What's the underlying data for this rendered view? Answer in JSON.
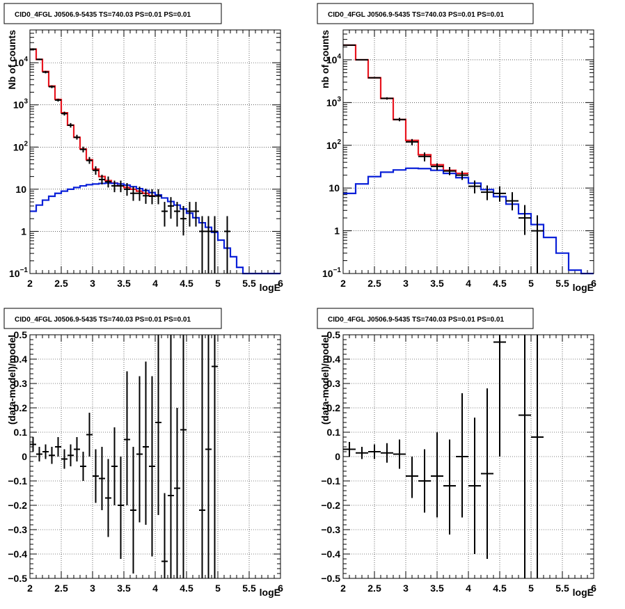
{
  "chart_data": [
    {
      "type": "step",
      "panel": "top-left",
      "title": "CID0_4FGL J0506.9-5435 TS=740.03 PS=0.01 PS=0.01",
      "xlabel": "logE",
      "ylabel": "Nb of counts",
      "xlim": [
        2,
        6
      ],
      "ylim": [
        0.1,
        60000
      ],
      "yscale": "log",
      "grid": true,
      "xticks": [
        "2",
        "2.5",
        "3",
        "3.5",
        "4",
        "4.5",
        "5",
        "5.5",
        "6"
      ],
      "yticks": [
        {
          "v": 0.1,
          "base": "10",
          "exp": "−1"
        },
        {
          "v": 1,
          "base": "1",
          "exp": ""
        },
        {
          "v": 10,
          "base": "10",
          "exp": ""
        },
        {
          "v": 100,
          "base": "10",
          "exp": "2"
        },
        {
          "v": 1000,
          "base": "10",
          "exp": "3"
        },
        {
          "v": 10000,
          "base": "10",
          "exp": "4"
        }
      ],
      "bin_edges": [
        2,
        2.1,
        2.2,
        2.3,
        2.4,
        2.5,
        2.6,
        2.7,
        2.8,
        2.9,
        3,
        3.1,
        3.2,
        3.3,
        3.4,
        3.5,
        3.6,
        3.7,
        3.8,
        3.9,
        4,
        4.1,
        4.2,
        4.3,
        4.4,
        4.5,
        4.6,
        4.7,
        4.8,
        4.9,
        5,
        5.1,
        5.2,
        5.3,
        5.4,
        5.5,
        5.6,
        5.7,
        5.8,
        5.9,
        6
      ],
      "series": [
        {
          "color": "#e8141e",
          "values": [
            21000,
            12000,
            6200,
            2800,
            1350,
            650,
            330,
            170,
            90,
            50,
            30,
            20,
            16,
            14,
            12,
            11,
            10,
            9,
            8,
            7
          ]
        },
        {
          "color": "#0a20d8",
          "values": [
            3.0,
            4.2,
            5.5,
            6.8,
            8.0,
            9.0,
            10.0,
            11.0,
            12.0,
            12.8,
            13.3,
            13.7,
            13.9,
            13.8,
            13.3,
            12.5,
            11.5,
            10.3,
            9.3,
            8.3,
            7.3,
            6.2,
            5.1,
            4.2,
            3.4,
            2.7,
            2.1,
            1.6,
            1.25,
            0.95,
            0.62,
            0.4,
            0.25,
            0.14,
            0.09,
            0.09,
            0.09,
            0.09,
            0.09,
            0.09
          ]
        }
      ],
      "points": [
        {
          "x": 2.05,
          "y": 21000,
          "lo": 20000,
          "hi": 22000
        },
        {
          "x": 2.15,
          "y": 12000,
          "lo": 11500,
          "hi": 12500
        },
        {
          "x": 2.25,
          "y": 6000,
          "lo": 5600,
          "hi": 6400
        },
        {
          "x": 2.35,
          "y": 2700,
          "lo": 2500,
          "hi": 2900
        },
        {
          "x": 2.45,
          "y": 1300,
          "lo": 1200,
          "hi": 1400
        },
        {
          "x": 2.55,
          "y": 620,
          "lo": 560,
          "hi": 690
        },
        {
          "x": 2.65,
          "y": 330,
          "lo": 290,
          "hi": 370
        },
        {
          "x": 2.75,
          "y": 170,
          "lo": 150,
          "hi": 195
        },
        {
          "x": 2.85,
          "y": 88,
          "lo": 75,
          "hi": 102
        },
        {
          "x": 2.95,
          "y": 48,
          "lo": 40,
          "hi": 58
        },
        {
          "x": 3.05,
          "y": 28,
          "lo": 22,
          "hi": 35
        },
        {
          "x": 3.15,
          "y": 17,
          "lo": 13,
          "hi": 22
        },
        {
          "x": 3.25,
          "y": 15,
          "lo": 11,
          "hi": 20
        },
        {
          "x": 3.35,
          "y": 12,
          "lo": 8.5,
          "hi": 16
        },
        {
          "x": 3.45,
          "y": 12,
          "lo": 8.5,
          "hi": 16
        },
        {
          "x": 3.55,
          "y": 10,
          "lo": 7,
          "hi": 14
        },
        {
          "x": 3.65,
          "y": 8,
          "lo": 5.3,
          "hi": 11.5
        },
        {
          "x": 3.75,
          "y": 8,
          "lo": 5.3,
          "hi": 11.5
        },
        {
          "x": 3.85,
          "y": 7,
          "lo": 4.5,
          "hi": 10.3
        },
        {
          "x": 3.95,
          "y": 6.8,
          "lo": 4.4,
          "hi": 10
        },
        {
          "x": 4.05,
          "y": 6.9,
          "lo": 4.4,
          "hi": 10
        },
        {
          "x": 4.15,
          "y": 3,
          "lo": 1.3,
          "hi": 5
        },
        {
          "x": 4.25,
          "y": 4,
          "lo": 2,
          "hi": 6.5
        },
        {
          "x": 4.35,
          "y": 3,
          "lo": 1.3,
          "hi": 5
        },
        {
          "x": 4.45,
          "y": 2,
          "lo": 0.8,
          "hi": 4
        },
        {
          "x": 4.55,
          "y": 3,
          "lo": 1.3,
          "hi": 5
        },
        {
          "x": 4.65,
          "y": 3,
          "lo": 1.3,
          "hi": 5
        },
        {
          "x": 4.75,
          "y": 1,
          "lo": 0.1,
          "hi": 2.3
        },
        {
          "x": 4.85,
          "y": 1,
          "lo": 0.1,
          "hi": 2.3
        },
        {
          "x": 4.95,
          "y": 1,
          "lo": 0.1,
          "hi": 2.3
        },
        {
          "x": 5.15,
          "y": 1,
          "lo": 0.1,
          "hi": 2.3
        }
      ]
    },
    {
      "type": "step",
      "panel": "top-right",
      "title": "CID0_4FGL J0506.9-5435 TS=740.03 PS=0.01 PS=0.01",
      "xlabel": "logE",
      "ylabel": "nb of counts",
      "xlim": [
        2,
        6
      ],
      "ylim": [
        0.1,
        50000
      ],
      "yscale": "log",
      "grid": true,
      "xticks": [
        "2",
        "2.5",
        "3",
        "3.5",
        "4",
        "4.5",
        "5",
        "5.5",
        "6"
      ],
      "yticks": [
        {
          "v": 0.1,
          "base": "10",
          "exp": "−1"
        },
        {
          "v": 1,
          "base": "1",
          "exp": ""
        },
        {
          "v": 10,
          "base": "10",
          "exp": ""
        },
        {
          "v": 100,
          "base": "10",
          "exp": "2"
        },
        {
          "v": 1000,
          "base": "10",
          "exp": "3"
        },
        {
          "v": 10000,
          "base": "10",
          "exp": "4"
        }
      ],
      "bin_edges": [
        2,
        2.2,
        2.4,
        2.6,
        2.8,
        3,
        3.2,
        3.4,
        3.6,
        3.8,
        4,
        4.2,
        4.4,
        4.6,
        4.8,
        5,
        5.2,
        5.4,
        5.6,
        5.8,
        6
      ],
      "series": [
        {
          "color": "#e8141e",
          "values": [
            22000,
            10000,
            3800,
            1250,
            400,
            130,
            60,
            35,
            26,
            22
          ]
        },
        {
          "color": "#0a20d8",
          "values": [
            7.5,
            12.5,
            18.5,
            23.5,
            26.5,
            29,
            28.5,
            26,
            22,
            17.5,
            13,
            9.2,
            6.3,
            4.2,
            2.5,
            1.4,
            0.7,
            0.3,
            0.12,
            0.1
          ]
        }
      ],
      "points": [
        {
          "x": 2.1,
          "y": 22000,
          "lo": 21500,
          "hi": 22500
        },
        {
          "x": 2.3,
          "y": 10000,
          "lo": 9800,
          "hi": 10200
        },
        {
          "x": 2.5,
          "y": 3800,
          "lo": 3650,
          "hi": 3950
        },
        {
          "x": 2.7,
          "y": 1250,
          "lo": 1170,
          "hi": 1330
        },
        {
          "x": 2.9,
          "y": 400,
          "lo": 365,
          "hi": 440
        },
        {
          "x": 3.1,
          "y": 120,
          "lo": 100,
          "hi": 140
        },
        {
          "x": 3.3,
          "y": 55,
          "lo": 42,
          "hi": 68
        },
        {
          "x": 3.5,
          "y": 32,
          "lo": 26,
          "hi": 38
        },
        {
          "x": 3.7,
          "y": 25,
          "lo": 20,
          "hi": 31
        },
        {
          "x": 3.9,
          "y": 20,
          "lo": 15.5,
          "hi": 25
        },
        {
          "x": 4.1,
          "y": 11,
          "lo": 7.5,
          "hi": 15
        },
        {
          "x": 4.3,
          "y": 8,
          "lo": 5.2,
          "hi": 11.5
        },
        {
          "x": 4.5,
          "y": 7.5,
          "lo": 4.8,
          "hi": 11
        },
        {
          "x": 4.7,
          "y": 5,
          "lo": 3,
          "hi": 8
        },
        {
          "x": 4.9,
          "y": 2,
          "lo": 0.8,
          "hi": 4
        },
        {
          "x": 5.1,
          "y": 1,
          "lo": 0.1,
          "hi": 2.3
        }
      ]
    },
    {
      "type": "scatter",
      "panel": "bottom-left",
      "title": "CID0_4FGL J0506.9-5435 TS=740.03 PS=0.01 PS=0.01",
      "xlabel": "logE",
      "ylabel": "(data-model)/model",
      "xlim": [
        2,
        6
      ],
      "ylim": [
        -0.5,
        0.5
      ],
      "grid": true,
      "xticks": [
        "2",
        "2.5",
        "3",
        "3.5",
        "4",
        "4.5",
        "5",
        "5.5",
        "6"
      ],
      "yticks": [
        "−0.5",
        "−0.4",
        "−0.3",
        "−0.2",
        "−0.1",
        "0",
        "0.1",
        "0.2",
        "0.3",
        "0.4",
        "0.5"
      ],
      "points": [
        {
          "x": 2.05,
          "y": 0.05,
          "lo": 0.02,
          "hi": 0.08
        },
        {
          "x": 2.15,
          "y": 0.01,
          "lo": -0.02,
          "hi": 0.04
        },
        {
          "x": 2.25,
          "y": 0.02,
          "lo": -0.01,
          "hi": 0.05
        },
        {
          "x": 2.35,
          "y": 0.005,
          "lo": -0.03,
          "hi": 0.04
        },
        {
          "x": 2.45,
          "y": 0.04,
          "lo": 0.0,
          "hi": 0.08
        },
        {
          "x": 2.55,
          "y": -0.01,
          "lo": -0.05,
          "hi": 0.03
        },
        {
          "x": 2.65,
          "y": 0.005,
          "lo": -0.04,
          "hi": 0.05
        },
        {
          "x": 2.75,
          "y": 0.03,
          "lo": -0.02,
          "hi": 0.08
        },
        {
          "x": 2.85,
          "y": -0.04,
          "lo": -0.1,
          "hi": 0.02
        },
        {
          "x": 2.95,
          "y": 0.09,
          "lo": 0.0,
          "hi": 0.18
        },
        {
          "x": 3.05,
          "y": -0.08,
          "lo": -0.19,
          "hi": 0.03
        },
        {
          "x": 3.15,
          "y": -0.09,
          "lo": -0.22,
          "hi": 0.04
        },
        {
          "x": 3.25,
          "y": -0.17,
          "lo": -0.33,
          "hi": -0.01
        },
        {
          "x": 3.35,
          "y": -0.04,
          "lo": -0.2,
          "hi": 0.12
        },
        {
          "x": 3.45,
          "y": -0.2,
          "lo": -0.42,
          "hi": 0.0
        },
        {
          "x": 3.55,
          "y": 0.07,
          "lo": -0.2,
          "hi": 0.35
        },
        {
          "x": 3.65,
          "y": -0.22,
          "lo": -0.48,
          "hi": 0.04
        },
        {
          "x": 3.75,
          "y": 0.01,
          "lo": -0.27,
          "hi": 0.33
        },
        {
          "x": 3.85,
          "y": 0.04,
          "lo": -0.28,
          "hi": 0.39
        },
        {
          "x": 3.95,
          "y": -0.04,
          "lo": -0.41,
          "hi": 0.33
        },
        {
          "x": 4.05,
          "y": 0.14,
          "lo": -0.24,
          "hi": 0.5
        },
        {
          "x": 4.15,
          "y": -0.43,
          "lo": -0.5,
          "hi": -0.15
        },
        {
          "x": 4.25,
          "y": -0.16,
          "lo": -0.5,
          "hi": 0.5
        },
        {
          "x": 4.35,
          "y": -0.13,
          "lo": -0.5,
          "hi": 0.2
        },
        {
          "x": 4.45,
          "y": 0.11,
          "lo": -0.5,
          "hi": 0.5
        },
        {
          "x": 4.75,
          "y": -0.22,
          "lo": -0.5,
          "hi": 0.5
        },
        {
          "x": 4.85,
          "y": 0.03,
          "lo": -0.5,
          "hi": 0.5
        },
        {
          "x": 4.95,
          "y": 0.37,
          "lo": -0.5,
          "hi": 0.5
        }
      ]
    },
    {
      "type": "scatter",
      "panel": "bottom-right",
      "title": "CID0_4FGL J0506.9-5435 TS=740.03 PS=0.01 PS=0.01",
      "xlabel": "logE",
      "ylabel": "(data-model)/model",
      "xlim": [
        2,
        6
      ],
      "ylim": [
        -0.5,
        0.5
      ],
      "grid": true,
      "xticks": [
        "2",
        "2.5",
        "3",
        "3.5",
        "4",
        "4.5",
        "5",
        "5.5",
        "6"
      ],
      "yticks": [
        "−0.5",
        "−0.4",
        "−0.3",
        "−0.2",
        "−0.1",
        "0",
        "0.1",
        "0.2",
        "0.3",
        "0.4",
        "0.5"
      ],
      "points": [
        {
          "x": 2.1,
          "y": 0.03,
          "lo": 0.0,
          "hi": 0.06
        },
        {
          "x": 2.3,
          "y": 0.015,
          "lo": -0.01,
          "hi": 0.04
        },
        {
          "x": 2.5,
          "y": 0.02,
          "lo": -0.01,
          "hi": 0.05
        },
        {
          "x": 2.7,
          "y": 0.015,
          "lo": -0.025,
          "hi": 0.055
        },
        {
          "x": 2.9,
          "y": 0.01,
          "lo": -0.05,
          "hi": 0.07
        },
        {
          "x": 3.1,
          "y": -0.08,
          "lo": -0.17,
          "hi": 0.0
        },
        {
          "x": 3.3,
          "y": -0.1,
          "lo": -0.23,
          "hi": 0.03
        },
        {
          "x": 3.5,
          "y": -0.08,
          "lo": -0.25,
          "hi": 0.1
        },
        {
          "x": 3.7,
          "y": -0.12,
          "lo": -0.32,
          "hi": 0.07
        },
        {
          "x": 3.9,
          "y": 0.0,
          "lo": -0.25,
          "hi": 0.26
        },
        {
          "x": 4.1,
          "y": -0.12,
          "lo": -0.4,
          "hi": 0.16
        },
        {
          "x": 4.3,
          "y": -0.07,
          "lo": -0.42,
          "hi": 0.28
        },
        {
          "x": 4.5,
          "y": 0.47,
          "lo": 0.0,
          "hi": 0.5
        },
        {
          "x": 4.9,
          "y": 0.17,
          "lo": -0.5,
          "hi": 0.5
        },
        {
          "x": 5.1,
          "y": 0.08,
          "lo": -0.5,
          "hi": 0.5
        }
      ]
    }
  ]
}
